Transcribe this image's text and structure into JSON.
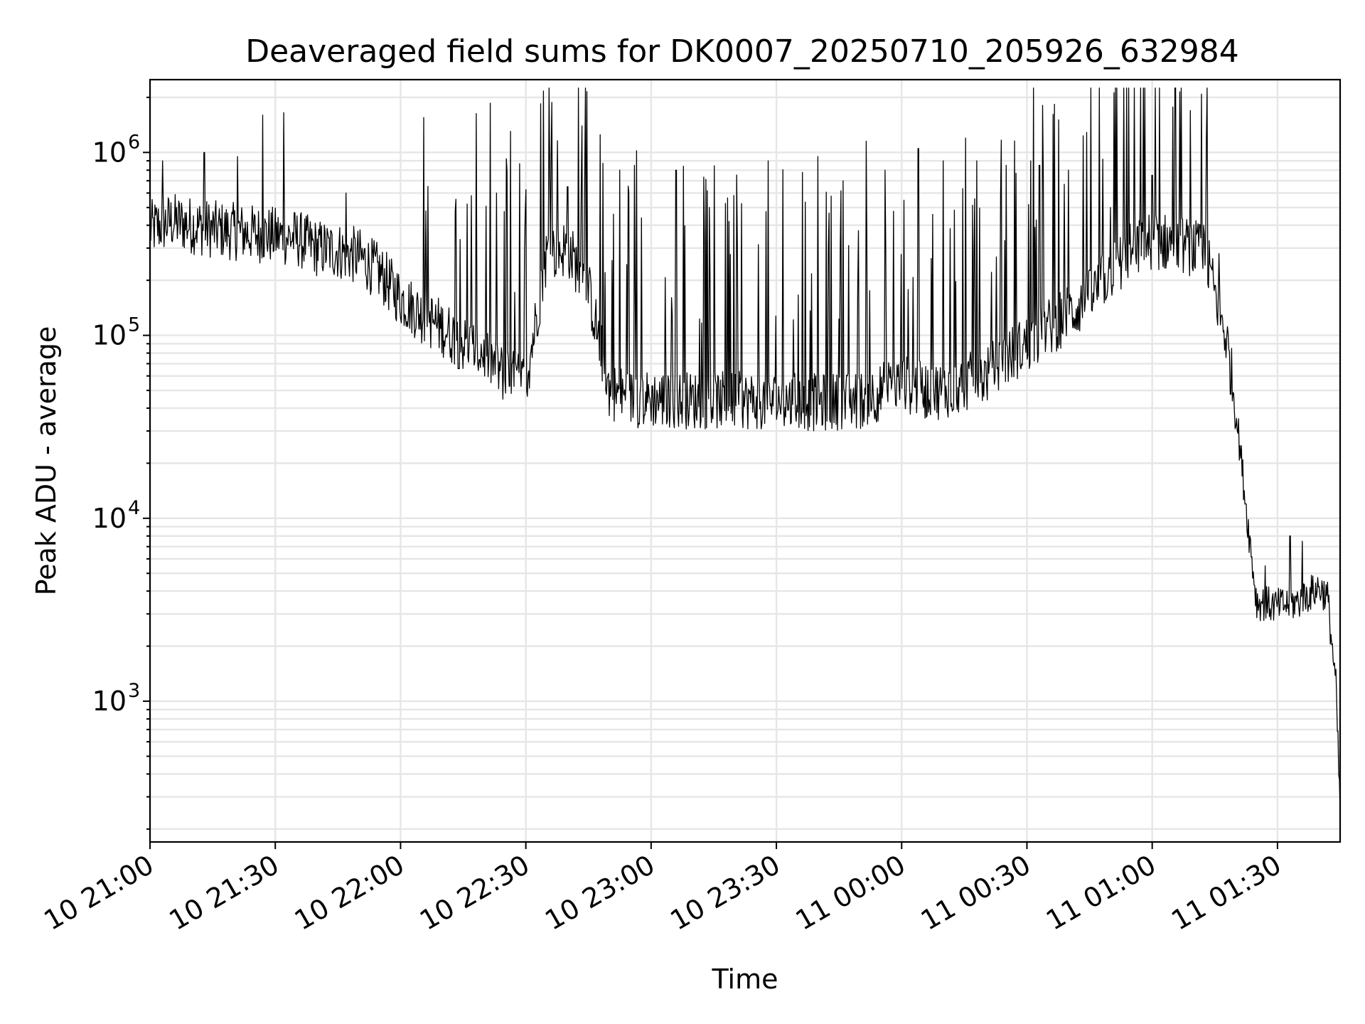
{
  "chart_data": {
    "type": "line",
    "title": "Deaveraged field sums for DK0007_20250710_205926_632984",
    "xlabel": "Time",
    "ylabel": "Peak ADU - average",
    "yscale": "log",
    "grid": true,
    "xlim": [
      "2025-07-10 21:00",
      "2025-07-11 01:45"
    ],
    "ylim": [
      170,
      2500000
    ],
    "x_tick_labels": [
      "10 21:00",
      "10 21:30",
      "10 22:00",
      "10 22:30",
      "10 23:00",
      "10 23:30",
      "11 00:00",
      "11 00:30",
      "11 01:00",
      "11 01:30"
    ],
    "y_tick_labels": [
      {
        "base": "10",
        "exp": "3",
        "value": 1000
      },
      {
        "base": "10",
        "exp": "4",
        "value": 10000
      },
      {
        "base": "10",
        "exp": "5",
        "value": 100000
      },
      {
        "base": "10",
        "exp": "6",
        "value": 1000000
      }
    ],
    "series": [
      {
        "color": "#000000",
        "baseline_x": [
          "2025-07-10 21:00",
          "2025-07-10 21:05",
          "2025-07-10 21:10",
          "2025-07-10 21:15",
          "2025-07-10 21:20",
          "2025-07-10 21:25",
          "2025-07-10 21:30",
          "2025-07-10 21:35",
          "2025-07-10 21:40",
          "2025-07-10 21:45",
          "2025-07-10 21:50",
          "2025-07-10 21:55",
          "2025-07-10 22:00",
          "2025-07-10 22:05",
          "2025-07-10 22:10",
          "2025-07-10 22:15",
          "2025-07-10 22:20",
          "2025-07-10 22:25",
          "2025-07-10 22:30",
          "2025-07-10 22:35",
          "2025-07-10 22:40",
          "2025-07-10 22:45",
          "2025-07-10 22:50",
          "2025-07-10 22:55",
          "2025-07-10 23:00",
          "2025-07-10 23:10",
          "2025-07-10 23:20",
          "2025-07-10 23:30",
          "2025-07-10 23:40",
          "2025-07-10 23:50",
          "2025-07-11 00:00",
          "2025-07-11 00:05",
          "2025-07-11 00:10",
          "2025-07-11 00:15",
          "2025-07-11 00:20",
          "2025-07-11 00:25",
          "2025-07-11 00:30",
          "2025-07-11 00:35",
          "2025-07-11 00:40",
          "2025-07-11 00:45",
          "2025-07-11 00:50",
          "2025-07-11 00:55",
          "2025-07-11 01:00",
          "2025-07-11 01:05",
          "2025-07-11 01:10",
          "2025-07-11 01:13",
          "2025-07-11 01:15",
          "2025-07-11 01:18",
          "2025-07-11 01:20",
          "2025-07-11 01:23",
          "2025-07-11 01:25",
          "2025-07-11 01:30",
          "2025-07-11 01:35",
          "2025-07-11 01:40",
          "2025-07-11 01:42",
          "2025-07-11 01:44",
          "2025-07-11 01:45"
        ],
        "baseline_y": [
          380000,
          420000,
          400000,
          380000,
          370000,
          360000,
          350000,
          340000,
          300000,
          290000,
          270000,
          220000,
          160000,
          130000,
          110000,
          90000,
          80000,
          60000,
          55000,
          280000,
          300000,
          180000,
          50000,
          45000,
          45000,
          44000,
          44000,
          44000,
          43000,
          44000,
          55000,
          50000,
          50000,
          55000,
          60000,
          75000,
          90000,
          110000,
          130000,
          160000,
          220000,
          290000,
          330000,
          320000,
          300000,
          270000,
          170000,
          90000,
          40000,
          9000,
          3500,
          3300,
          3500,
          4200,
          3700,
          1200,
          250
        ],
        "spikes": [
          {
            "x": "2025-07-10 21:03",
            "y": 900000
          },
          {
            "x": "2025-07-10 21:13",
            "y": 1000000
          },
          {
            "x": "2025-07-10 21:21",
            "y": 950000
          },
          {
            "x": "2025-07-10 21:27",
            "y": 1600000
          },
          {
            "x": "2025-07-10 21:32",
            "y": 1650000
          },
          {
            "x": "2025-07-10 21:47",
            "y": 600000
          },
          {
            "x": "2025-07-10 22:17",
            "y": 580000
          },
          {
            "x": "2025-07-10 22:23",
            "y": 600000
          },
          {
            "x": "2025-07-10 22:36",
            "y": 950000
          },
          {
            "x": "2025-07-10 22:40",
            "y": 650000
          },
          {
            "x": "2025-07-10 22:56",
            "y": 850000
          },
          {
            "x": "2025-07-10 23:06",
            "y": 800000
          },
          {
            "x": "2025-07-10 23:14",
            "y": 500000
          },
          {
            "x": "2025-07-10 23:28",
            "y": 900000
          },
          {
            "x": "2025-07-10 23:40",
            "y": 950000
          },
          {
            "x": "2025-07-10 23:46",
            "y": 700000
          },
          {
            "x": "2025-07-10 23:56",
            "y": 800000
          },
          {
            "x": "2025-07-11 00:04",
            "y": 1050000
          },
          {
            "x": "2025-07-11 00:10",
            "y": 900000
          },
          {
            "x": "2025-07-11 00:18",
            "y": 900000
          },
          {
            "x": "2025-07-11 00:25",
            "y": 850000
          },
          {
            "x": "2025-07-11 00:33",
            "y": 850000
          },
          {
            "x": "2025-07-11 00:40",
            "y": 800000
          },
          {
            "x": "2025-07-11 00:50",
            "y": 500000
          },
          {
            "x": "2025-07-11 01:00",
            "y": 750000
          },
          {
            "x": "2025-07-11 01:13",
            "y": 1200000
          },
          {
            "x": "2025-07-11 01:16",
            "y": 280000
          },
          {
            "x": "2025-07-11 01:27",
            "y": 5500
          },
          {
            "x": "2025-07-11 01:33",
            "y": 8000
          },
          {
            "x": "2025-07-11 01:36",
            "y": 7500
          }
        ]
      }
    ]
  }
}
